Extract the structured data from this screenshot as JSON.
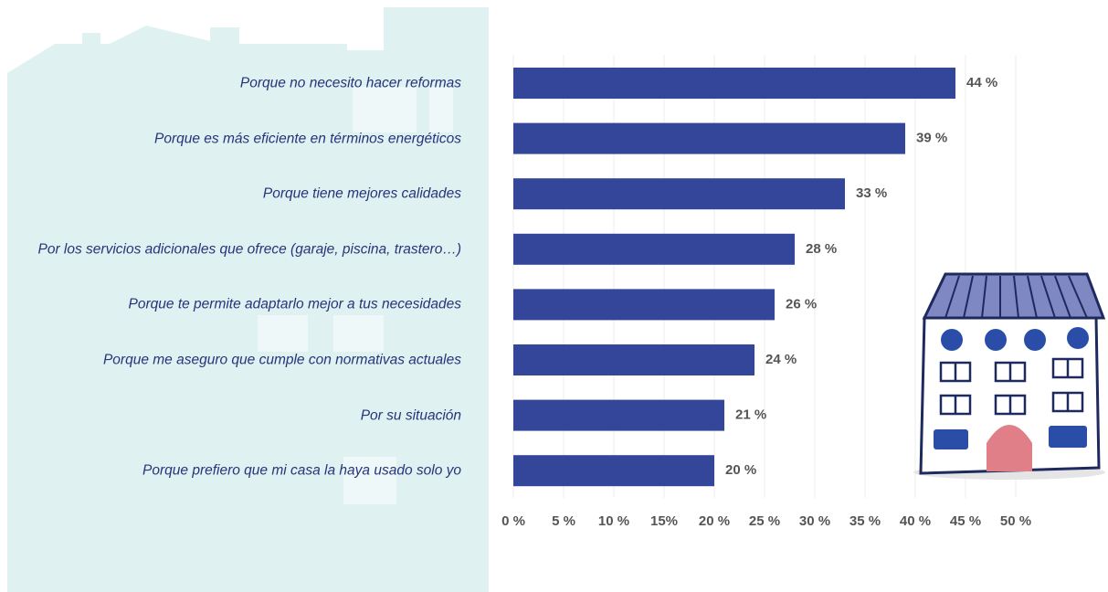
{
  "chart_data": {
    "type": "hbar",
    "categories": [
      "Porque no necesito hacer reformas",
      "Porque es más eficiente en términos energéticos",
      "Porque tiene mejores calidades",
      "Por los servicios adicionales que ofrece (garaje, piscina, trastero…)",
      "Porque te permite adaptarlo mejor a tus necesidades",
      "Porque me aseguro que cumple con normativas actuales",
      "Por su situación",
      "Porque prefiero que mi casa la haya usado solo yo"
    ],
    "values": [
      44,
      39,
      33,
      28,
      26,
      24,
      21,
      20
    ],
    "value_labels": [
      "44 %",
      "39 %",
      "33 %",
      "28 %",
      "26 %",
      "24 %",
      "21 %",
      "20 %"
    ],
    "color": "#34469a",
    "xlim": [
      0,
      50
    ],
    "xticks": [
      {
        "value": 0,
        "label": "0 %"
      },
      {
        "value": 5,
        "label": "5 %"
      },
      {
        "value": 10,
        "label": "10 %"
      },
      {
        "value": 15,
        "label": "15%"
      },
      {
        "value": 20,
        "label": "20 %"
      },
      {
        "value": 25,
        "label": "25 %"
      },
      {
        "value": 30,
        "label": "30 %"
      },
      {
        "value": 35,
        "label": "35 %"
      },
      {
        "value": 40,
        "label": "40 %"
      },
      {
        "value": 45,
        "label": "45 %"
      },
      {
        "value": 50,
        "label": "50 %"
      }
    ],
    "grid": true
  }
}
